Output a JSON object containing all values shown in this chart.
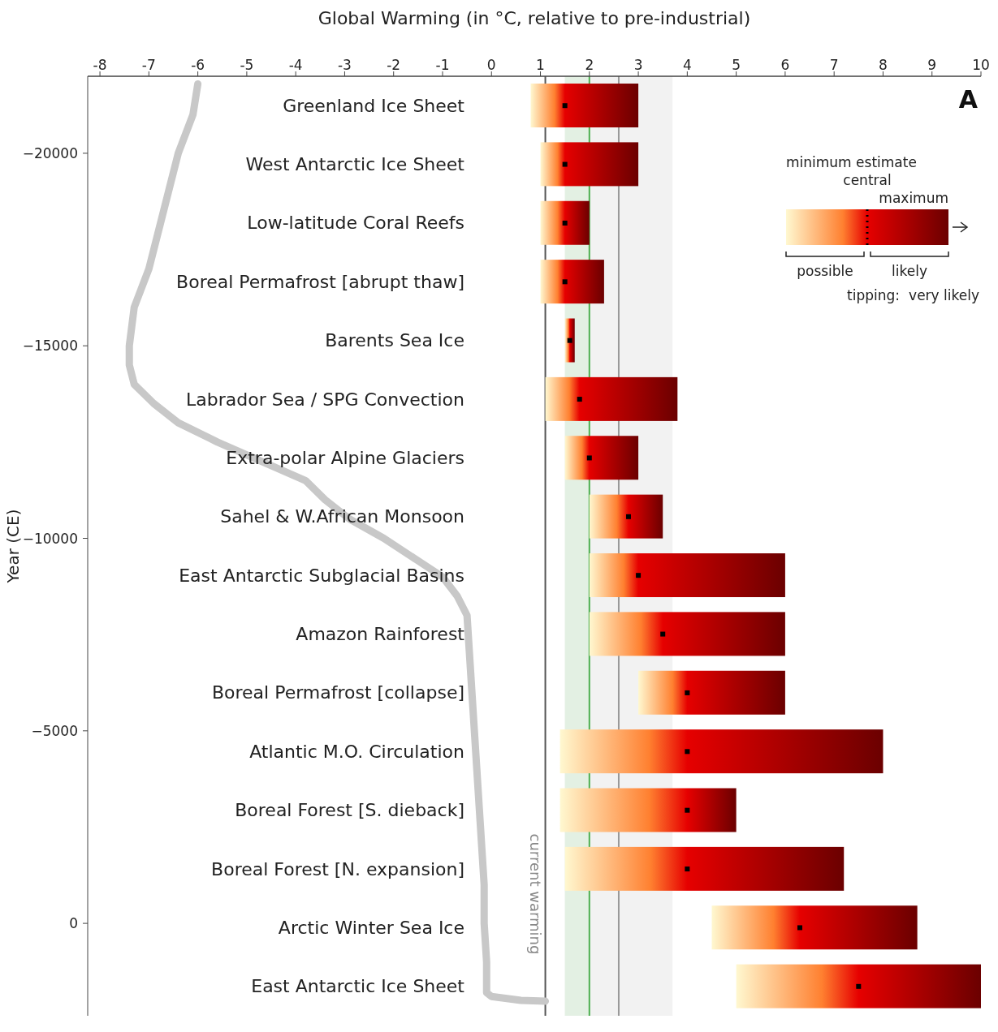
{
  "chart_data": [
    {
      "type": "line",
      "xlabel": "Global Warming (in °C, relative to pre-industrial)",
      "ylabel": "Year (CE)",
      "series": [
        {
          "color": "#c8c8c8",
          "x": [
            -6.0,
            -6.1,
            -6.4,
            -6.6,
            -6.8,
            -7.0,
            -7.3,
            -7.4,
            -7.4,
            -7.3,
            -6.9,
            -6.4,
            -5.6,
            -4.7,
            -3.8,
            -3.4,
            -2.9,
            -2.2,
            -1.6,
            -1.0,
            -0.7,
            -0.5,
            -0.45,
            -0.4,
            -0.35,
            -0.3,
            -0.25,
            -0.2,
            -0.15,
            -0.15,
            -0.1,
            -0.1,
            0.0,
            0.6,
            1.1
          ],
          "values": [
            -21800,
            -21000,
            -20000,
            -19000,
            -18000,
            -17000,
            -16000,
            -15000,
            -14500,
            -14000,
            -13500,
            -13000,
            -12500,
            -12000,
            -11500,
            -11000,
            -10500,
            -10000,
            -9500,
            -9000,
            -8500,
            -8000,
            -7000,
            -6000,
            -5000,
            -4000,
            -3000,
            -2000,
            -1000,
            0,
            1000,
            1800,
            1900,
            2000,
            2020
          ]
        }
      ],
      "xlim": [
        -8.25,
        10
      ],
      "xticks": [
        -8,
        -7,
        -6,
        -5,
        -4,
        -3,
        -2,
        -1,
        0,
        1,
        2,
        3,
        4,
        5,
        6,
        7,
        8,
        9,
        10
      ],
      "ylim": [
        2400,
        -22000
      ],
      "yticks": [
        {
          "value": -20000,
          "label": "−20000"
        },
        {
          "value": -15000,
          "label": "−15000"
        },
        {
          "value": -10000,
          "label": "−10000"
        },
        {
          "value": -5000,
          "label": "−5000"
        },
        0
      ],
      "ref_lines": [
        {
          "axis": "x",
          "value": 1.1,
          "label": "current warming",
          "color": "#555555"
        },
        {
          "axis": "x",
          "value": 2.0,
          "color": "#4caf50"
        },
        {
          "axis": "x",
          "value": 2.6,
          "color": "#999999"
        }
      ],
      "bands": [
        {
          "axis": "x",
          "from": 1.5,
          "to": 3.7,
          "color": "#f2f2f2"
        },
        {
          "axis": "x",
          "from": 1.5,
          "to": 2.0,
          "color": "#e3f0e3"
        }
      ],
      "annotations": [
        "A",
        "maximum",
        "central",
        "minimum estimate",
        "tipping:",
        "very likely",
        "likely",
        "possible"
      ]
    },
    {
      "type": "bar",
      "orientation": "horizontal",
      "tick_labels": "y",
      "categories": [
        "Greenland Ice Sheet",
        "West Antarctic Ice Sheet",
        "Low-latitude Coral Reefs",
        "Boreal Permafrost [abrupt thaw]",
        "Barents Sea Ice",
        "Labrador Sea / SPG Convection",
        "Extra-polar Alpine Glaciers",
        "Sahel & W.African Monsoon",
        "East Antarctic Subglacial Basins",
        "Amazon Rainforest",
        "Boreal Permafrost [collapse]",
        "Atlantic M.O. Circulation",
        "Boreal Forest [S. dieback]",
        "Boreal Forest [N. expansion]",
        "Arctic Winter Sea Ice",
        "East Antarctic Ice Sheet"
      ],
      "series": [
        {
          "type": "bar",
          "color": "#e60000",
          "base": [
            0.8,
            1.0,
            1.0,
            1.0,
            1.5,
            1.1,
            1.5,
            2.0,
            2.0,
            2.0,
            3.0,
            1.4,
            1.4,
            1.5,
            4.5,
            5.0
          ],
          "values": [
            2.2,
            2.0,
            1.0,
            1.3,
            0.2,
            2.7,
            1.5,
            1.5,
            4.0,
            4.0,
            3.0,
            6.6,
            3.6,
            5.7,
            4.2,
            5.0
          ]
        },
        {
          "type": "scatter",
          "color": "#000000",
          "line_style": "dotted",
          "marker": "square",
          "values": [
            1.5,
            1.5,
            1.5,
            1.5,
            1.6,
            1.8,
            2.0,
            2.8,
            3.0,
            3.5,
            4.0,
            4.0,
            4.0,
            4.0,
            6.3,
            7.5
          ]
        }
      ],
      "xlim": [
        -8.25,
        10
      ]
    }
  ]
}
